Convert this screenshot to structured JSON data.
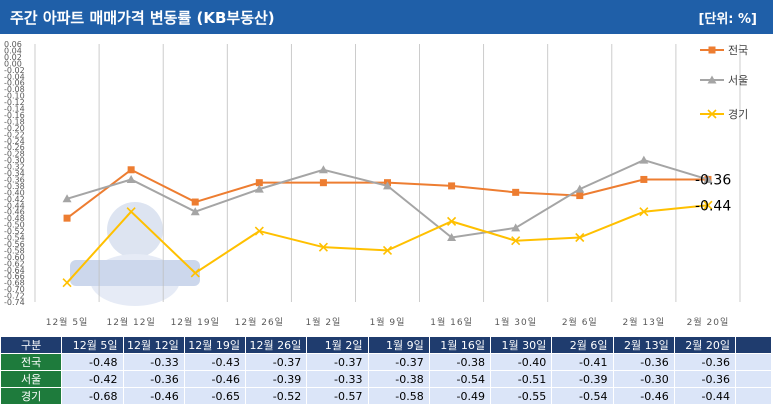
{
  "header": {
    "title": "주간 아파트 매매가격 변동률 (KB부동산)",
    "unit": "[단위: %]"
  },
  "colors": {
    "header_bg": "#1f5fa8",
    "national": "#ed7d31",
    "seoul": "#a5a5a5",
    "gyeonggi": "#ffc000",
    "table_header_bg": "#1f3c6e",
    "row_header_bg": "#1e7b3c",
    "cell_bg": "#dbe5f8"
  },
  "chart_data": {
    "type": "line",
    "categories": [
      "12월 5일",
      "12월 12일",
      "12월 19일",
      "12월 26일",
      "1월 2일",
      "1월 9일",
      "1월 16일",
      "1월 30일",
      "2월 6일",
      "2월 13일",
      "2월 20일"
    ],
    "ylim": [
      -0.74,
      0.06
    ],
    "ytick_step": 0.02,
    "grid": true,
    "legend_position": "right",
    "series": [
      {
        "name": "전국",
        "color": "#ed7d31",
        "marker": "square",
        "values": [
          -0.48,
          -0.33,
          -0.43,
          -0.37,
          -0.37,
          -0.37,
          -0.38,
          -0.4,
          -0.41,
          -0.36,
          -0.36
        ]
      },
      {
        "name": "서울",
        "color": "#a5a5a5",
        "marker": "triangle",
        "values": [
          -0.42,
          -0.36,
          -0.46,
          -0.39,
          -0.33,
          -0.38,
          -0.54,
          -0.51,
          -0.39,
          -0.3,
          -0.36
        ]
      },
      {
        "name": "경기",
        "color": "#ffc000",
        "marker": "x",
        "values": [
          -0.68,
          -0.46,
          -0.65,
          -0.52,
          -0.57,
          -0.58,
          -0.49,
          -0.55,
          -0.54,
          -0.46,
          -0.44
        ]
      }
    ],
    "end_labels": [
      "-0.36",
      "-0.44"
    ]
  },
  "table": {
    "corner": "구분",
    "headers": [
      "12월 5일",
      "12월 12일",
      "12월 19일",
      "12월 26일",
      "1월 2일",
      "1월 9일",
      "1월 16일",
      "1월 30일",
      "2월 6일",
      "2월 13일",
      "2월 20일"
    ],
    "rows": [
      {
        "label": "전국",
        "values": [
          "-0.48",
          "-0.33",
          "-0.43",
          "-0.37",
          "-0.37",
          "-0.37",
          "-0.38",
          "-0.40",
          "-0.41",
          "-0.36",
          "-0.36"
        ]
      },
      {
        "label": "서울",
        "values": [
          "-0.42",
          "-0.36",
          "-0.46",
          "-0.39",
          "-0.33",
          "-0.38",
          "-0.54",
          "-0.51",
          "-0.39",
          "-0.30",
          "-0.36"
        ]
      },
      {
        "label": "경기",
        "values": [
          "-0.68",
          "-0.46",
          "-0.65",
          "-0.52",
          "-0.57",
          "-0.58",
          "-0.49",
          "-0.55",
          "-0.54",
          "-0.46",
          "-0.44"
        ]
      }
    ]
  }
}
